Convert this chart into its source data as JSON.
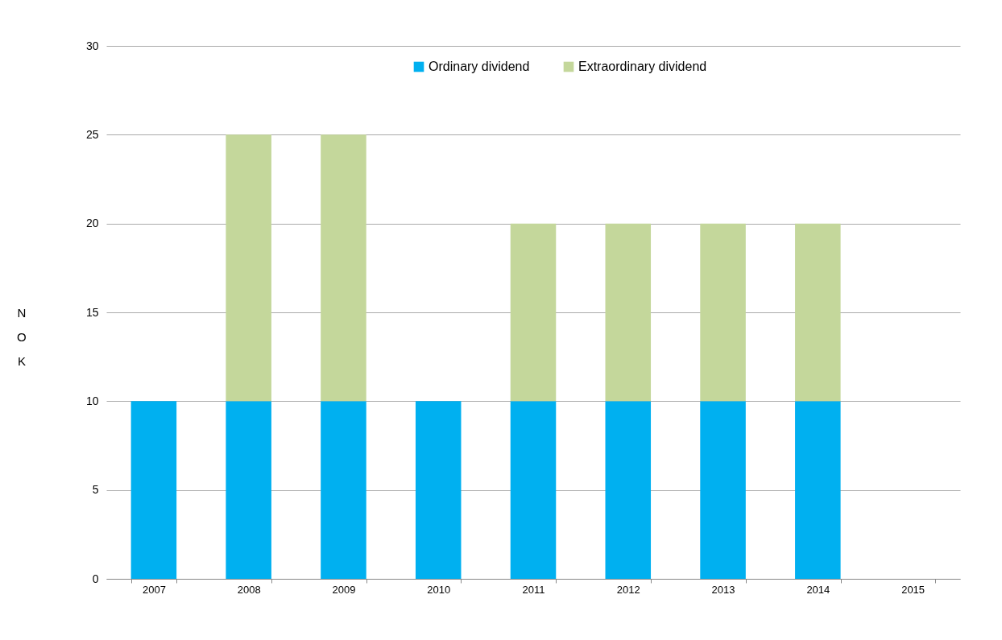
{
  "chart_data": {
    "type": "bar",
    "stacked": true,
    "ylabel": "NOK",
    "categories": [
      "2007",
      "2008",
      "2009",
      "2010",
      "2011",
      "2012",
      "2013",
      "2014",
      "2015"
    ],
    "series": [
      {
        "name": "Ordinary dividend",
        "color": "#00b0f0",
        "values": [
          10,
          10,
          10,
          10,
          10,
          10,
          10,
          10,
          null
        ]
      },
      {
        "name": "Extraordinary dividend",
        "color": "#c4d79b",
        "values": [
          null,
          15,
          15,
          null,
          10,
          10,
          10,
          10,
          null
        ]
      }
    ],
    "ylim": [
      0,
      30
    ],
    "yticks": [
      0,
      5,
      10,
      15,
      20,
      25,
      30
    ],
    "grid": "y",
    "legend": "top"
  }
}
